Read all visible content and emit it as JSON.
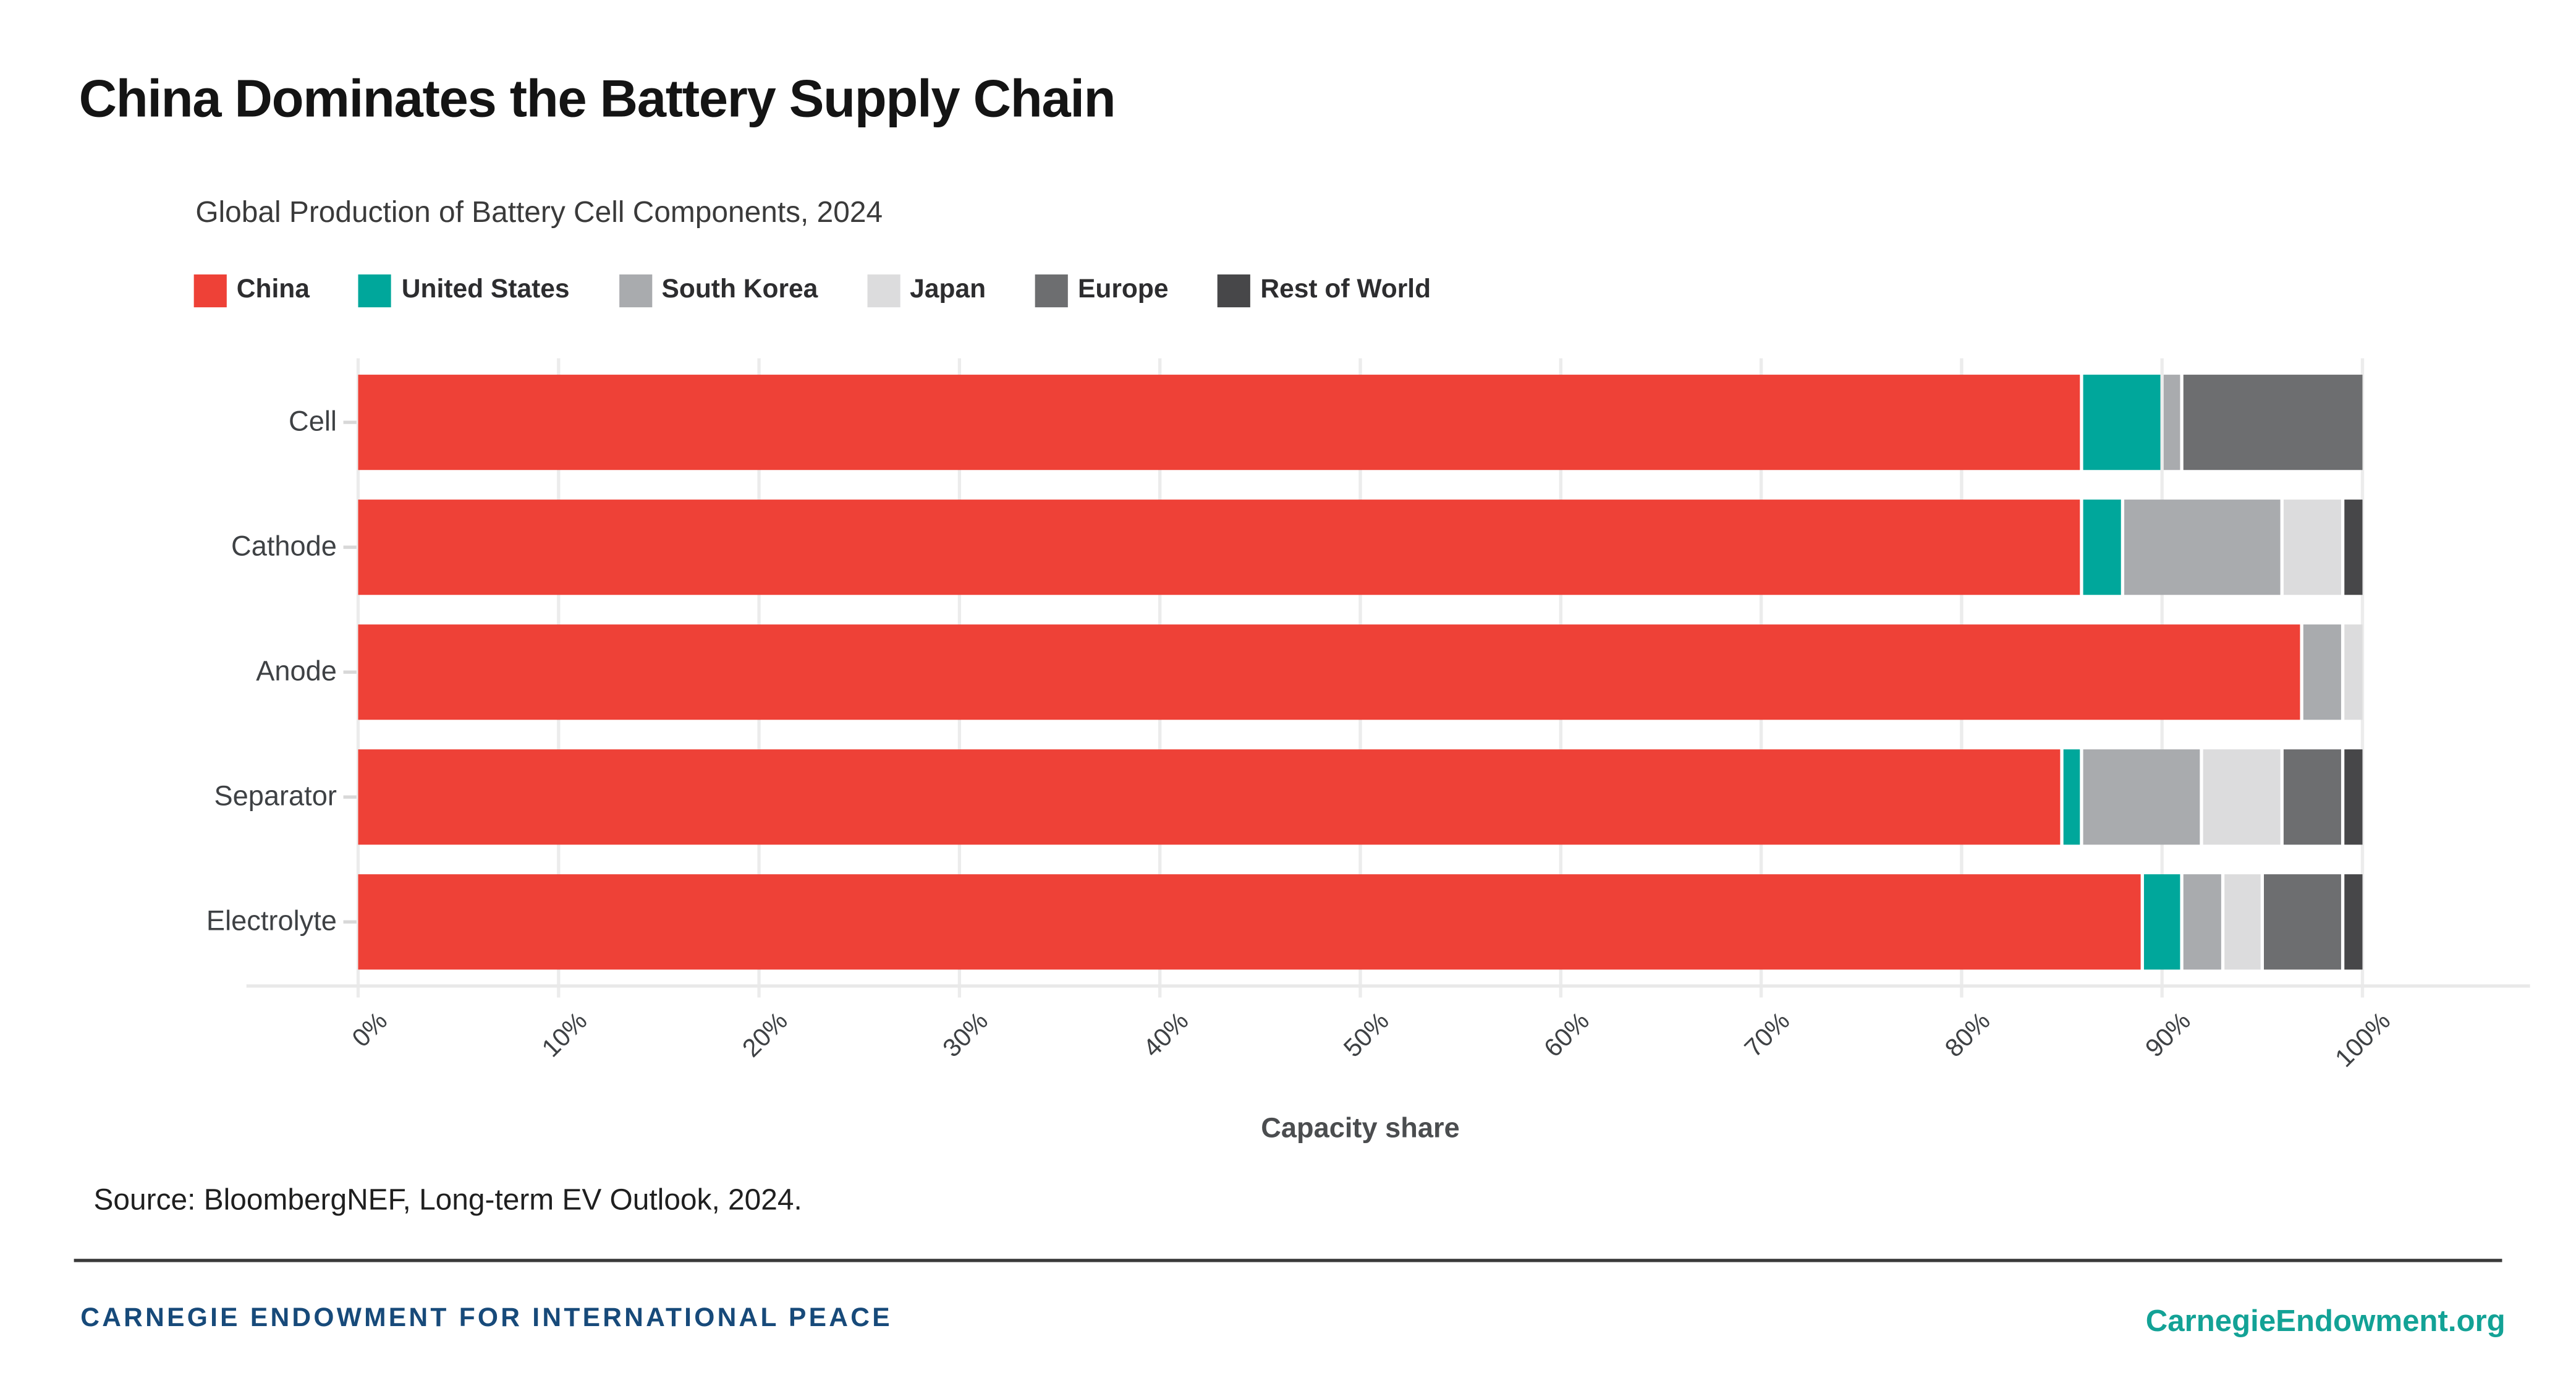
{
  "title": "China Dominates the Battery Supply Chain",
  "source": "Source: BloombergNEF, Long-term EV Outlook, 2024.",
  "footer": {
    "left": "CARNEGIE ENDOWMENT FOR INTERNATIONAL PEACE",
    "right": "CarnegieEndowment.org"
  },
  "colors": {
    "china": "#ee4137",
    "united_states": "#00a79b",
    "south_korea": "#a9abae",
    "japan": "#dcdcdd",
    "europe": "#6d6e70",
    "rest_of_world": "#474749",
    "gridline": "#ececec",
    "footer_navy": "#174a7a",
    "footer_teal": "#13a296"
  },
  "chart_data": {
    "type": "bar",
    "stacked": true,
    "orientation": "horizontal",
    "title": "Global Production of Battery Cell Components, 2024",
    "xlabel": "Capacity share",
    "categories": [
      "Cell",
      "Cathode",
      "Anode",
      "Separator",
      "Electrolyte"
    ],
    "series": [
      {
        "name": "China",
        "color": "#ee4137",
        "values": [
          86,
          86,
          97,
          85,
          89
        ]
      },
      {
        "name": "United States",
        "color": "#00a79b",
        "values": [
          4,
          2,
          0,
          1,
          2
        ]
      },
      {
        "name": "South Korea",
        "color": "#a9abae",
        "values": [
          1,
          8,
          2,
          6,
          2
        ]
      },
      {
        "name": "Japan",
        "color": "#dcdcdd",
        "values": [
          0,
          3,
          1,
          4,
          2
        ]
      },
      {
        "name": "Europe",
        "color": "#6d6e70",
        "values": [
          9,
          0,
          0,
          3,
          4
        ]
      },
      {
        "name": "Rest of World",
        "color": "#474749",
        "values": [
          0,
          1,
          0,
          1,
          1
        ]
      }
    ],
    "xlim": [
      0,
      100
    ],
    "x_ticks": [
      "0%",
      "10%",
      "20%",
      "30%",
      "40%",
      "50%",
      "60%",
      "70%",
      "80%",
      "90%",
      "100%"
    ],
    "grid": true,
    "legend_position": "top"
  }
}
